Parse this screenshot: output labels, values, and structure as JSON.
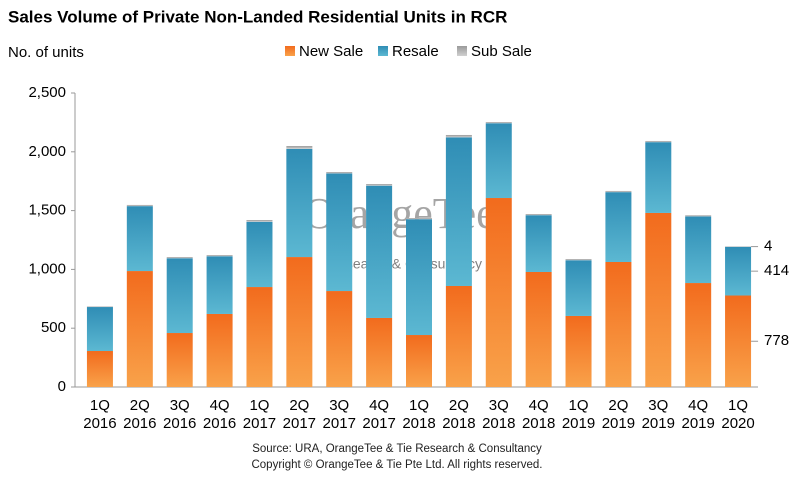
{
  "chart_data": {
    "type": "stacked_bar",
    "title": "Sales Volume of Private Non-Landed Residential Units in RCR",
    "y_label": "No. of units",
    "categories": [
      "1Q 2016",
      "2Q 2016",
      "3Q 2016",
      "4Q 2016",
      "1Q 2017",
      "2Q 2017",
      "3Q 2017",
      "4Q 2017",
      "1Q 2018",
      "2Q 2018",
      "3Q 2018",
      "4Q 2018",
      "1Q 2019",
      "2Q 2019",
      "3Q 2019",
      "4Q 2019",
      "1Q 2020"
    ],
    "series": [
      {
        "name": "New Sale",
        "color": "#f47c20",
        "values": [
          306,
          986,
          459,
          621,
          850,
          1105,
          816,
          587,
          442,
          859,
          1607,
          978,
          604,
          1063,
          1480,
          884,
          778
        ]
      },
      {
        "name": "Resale",
        "color": "#3a9cc0",
        "values": [
          374,
          552,
          636,
          491,
          555,
          920,
          1000,
          1125,
          985,
          1264,
          636,
          483,
          474,
          594,
          602,
          566,
          414
        ]
      },
      {
        "name": "Sub Sale",
        "color": "#b4b4b4",
        "values": [
          5,
          10,
          10,
          10,
          15,
          24,
          12,
          14,
          10,
          20,
          10,
          10,
          10,
          10,
          10,
          10,
          4
        ]
      }
    ],
    "ylim": [
      0,
      2500
    ],
    "yticks": [
      0,
      500,
      {
        "value": 1000,
        "label": "1,000"
      },
      {
        "value": 1500,
        "label": "1,500"
      },
      {
        "value": 2000,
        "label": "2,000"
      },
      {
        "value": 2500,
        "label": "2,500"
      }
    ],
    "legend": "top",
    "watermark": "OrangeTee.",
    "watermark_sub": "Research & Consultancy",
    "source": "Source: URA, OrangeTee & Tie Research & Consultancy",
    "copyright": "Copyright © OrangeTee & Tie Pte Ltd. All rights reserved."
  }
}
